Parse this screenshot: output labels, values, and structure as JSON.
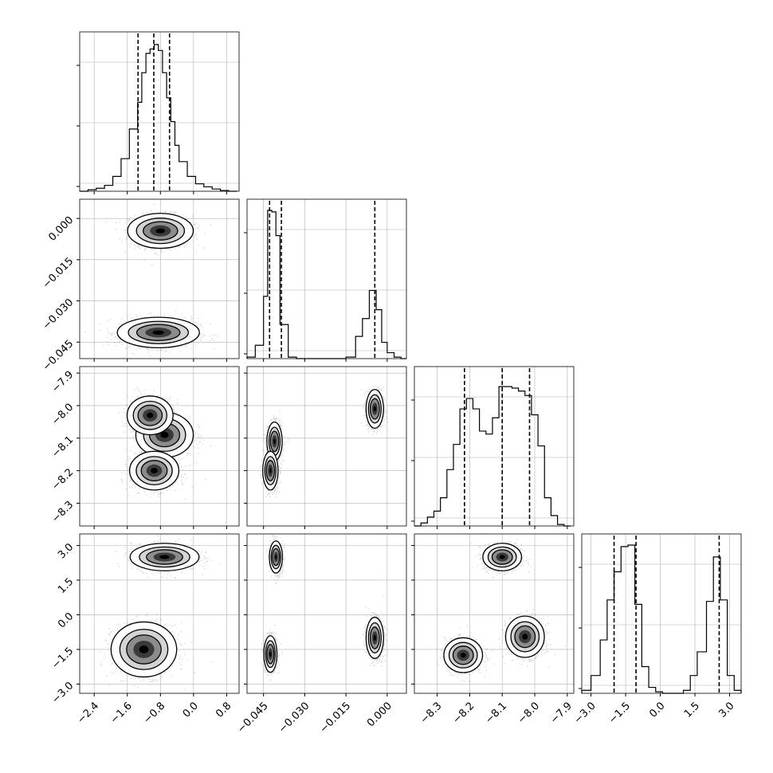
{
  "chart_data": {
    "type": "corner",
    "quantiles": [
      0.16,
      0.5,
      0.84
    ],
    "parameters": [
      {
        "range": [
          -2.75,
          1.1
        ],
        "ticks": [
          -2.4,
          -1.6,
          -0.8,
          0.0,
          0.8
        ],
        "tick_labels": [
          "−2.4",
          "−1.6",
          "−0.8",
          "0.0",
          "0.8"
        ],
        "quantile_values": [
          -1.34,
          -0.96,
          -0.58
        ],
        "histogram": {
          "bin_edges": [
            -2.75,
            -2.55,
            -2.35,
            -2.15,
            -1.95,
            -1.75,
            -1.55,
            -1.35,
            -1.25,
            -1.15,
            -1.05,
            -0.95,
            -0.85,
            -0.75,
            -0.65,
            -0.55,
            -0.45,
            -0.35,
            -0.15,
            0.05,
            0.25,
            0.45,
            0.65,
            0.85,
            1.05
          ],
          "counts": [
            0.0,
            0.01,
            0.02,
            0.04,
            0.1,
            0.22,
            0.42,
            0.6,
            0.8,
            0.93,
            0.96,
            0.99,
            0.95,
            0.8,
            0.63,
            0.47,
            0.31,
            0.2,
            0.1,
            0.05,
            0.03,
            0.015,
            0.005,
            0.0
          ]
        }
      },
      {
        "range": [
          -0.051,
          0.007
        ],
        "ticks": [
          -0.045,
          -0.03,
          -0.015,
          0.0
        ],
        "tick_labels": [
          "−0.045",
          "−0.030",
          "−0.015",
          "0.000"
        ],
        "quantile_values": [
          -0.0428,
          -0.0385,
          -0.0045
        ],
        "histogram": {
          "bin_edges": [
            -0.051,
            -0.048,
            -0.045,
            -0.0435,
            -0.042,
            -0.0405,
            -0.039,
            -0.036,
            -0.033,
            -0.03,
            -0.027,
            -0.024,
            -0.021,
            -0.018,
            -0.015,
            -0.0115,
            -0.009,
            -0.0065,
            -0.004,
            -0.002,
            0.0,
            0.0025,
            0.005,
            0.007
          ],
          "counts": [
            0.01,
            0.09,
            0.42,
            1.0,
            0.99,
            0.83,
            0.23,
            0.01,
            0.0,
            0.0,
            0.0,
            0.0,
            0.0,
            0.0,
            0.01,
            0.15,
            0.27,
            0.46,
            0.33,
            0.11,
            0.04,
            0.01,
            0.0
          ]
        }
      },
      {
        "range": [
          -8.37,
          -7.88
        ],
        "ticks": [
          -8.3,
          -8.2,
          -8.1,
          -8.0,
          -7.9
        ],
        "tick_labels": [
          "−8.3",
          "−8.2",
          "−8.1",
          "−8.0",
          "−7.9"
        ],
        "quantile_values": [
          -8.216,
          -8.1,
          -8.016
        ],
        "histogram": {
          "bin_edges": [
            -8.37,
            -8.35,
            -8.33,
            -8.31,
            -8.29,
            -8.27,
            -8.25,
            -8.23,
            -8.21,
            -8.19,
            -8.17,
            -8.15,
            -8.13,
            -8.11,
            -8.09,
            -8.07,
            -8.05,
            -8.03,
            -8.01,
            -7.99,
            -7.97,
            -7.95,
            -7.93,
            -7.91,
            -7.89
          ],
          "counts": [
            0.0,
            0.02,
            0.06,
            0.1,
            0.19,
            0.38,
            0.55,
            0.79,
            0.86,
            0.79,
            0.64,
            0.62,
            0.73,
            0.94,
            0.94,
            0.93,
            0.91,
            0.88,
            0.75,
            0.54,
            0.19,
            0.07,
            0.01,
            0.0
          ]
        }
      },
      {
        "range": [
          -3.4,
          3.5
        ],
        "ticks": [
          -3.0,
          -1.5,
          0.0,
          1.5,
          3.0
        ],
        "tick_labels": [
          "−3.0",
          "−1.5",
          "0.0",
          "1.5",
          "3.0"
        ],
        "quantile_values": [
          -2.0,
          -1.05,
          2.55
        ],
        "histogram": {
          "bin_edges": [
            -3.4,
            -3.0,
            -2.6,
            -2.3,
            -2.0,
            -1.7,
            -1.4,
            -1.1,
            -0.8,
            -0.5,
            -0.2,
            0.1,
            0.4,
            0.7,
            1.0,
            1.3,
            1.6,
            2.0,
            2.3,
            2.6,
            2.9,
            3.2,
            3.5
          ],
          "counts": [
            0.02,
            0.12,
            0.36,
            0.63,
            0.82,
            0.99,
            1.0,
            0.6,
            0.18,
            0.04,
            0.01,
            0.0,
            0.0,
            0.0,
            0.02,
            0.12,
            0.28,
            0.62,
            0.92,
            0.63,
            0.12,
            0.02
          ]
        }
      }
    ],
    "pairs": [
      {
        "row": 1,
        "col": 0,
        "modes": [
          {
            "cx": -0.8,
            "cy": -0.0045,
            "sx": 0.4,
            "sy": 0.0032
          },
          {
            "cx": -0.85,
            "cy": -0.0415,
            "sx": 0.5,
            "sy": 0.0028
          }
        ]
      },
      {
        "row": 2,
        "col": 0,
        "modes": [
          {
            "cx": -0.7,
            "cy": -8.09,
            "sx": 0.35,
            "sy": 0.035
          },
          {
            "cx": -0.95,
            "cy": -8.2,
            "sx": 0.3,
            "sy": 0.03
          },
          {
            "cx": -1.05,
            "cy": -8.03,
            "sx": 0.28,
            "sy": 0.03
          }
        ]
      },
      {
        "row": 2,
        "col": 1,
        "modes": [
          {
            "cx": -0.041,
            "cy": -8.11,
            "sx": 0.0014,
            "sy": 0.03
          },
          {
            "cx": -0.0425,
            "cy": -8.2,
            "sx": 0.0014,
            "sy": 0.03
          },
          {
            "cx": -0.0045,
            "cy": -8.01,
            "sx": 0.0016,
            "sy": 0.03
          }
        ]
      },
      {
        "row": 3,
        "col": 0,
        "modes": [
          {
            "cx": -0.7,
            "cy": 2.5,
            "sx": 0.42,
            "sy": 0.3
          },
          {
            "cx": -1.2,
            "cy": -1.5,
            "sx": 0.4,
            "sy": 0.6
          }
        ]
      },
      {
        "row": 3,
        "col": 1,
        "modes": [
          {
            "cx": -0.0405,
            "cy": 2.5,
            "sx": 0.0012,
            "sy": 0.35
          },
          {
            "cx": -0.0425,
            "cy": -1.7,
            "sx": 0.0012,
            "sy": 0.4
          },
          {
            "cx": -0.0045,
            "cy": -1.0,
            "sx": 0.0016,
            "sy": 0.45
          }
        ]
      },
      {
        "row": 3,
        "col": 2,
        "modes": [
          {
            "cx": -8.1,
            "cy": 2.5,
            "sx": 0.03,
            "sy": 0.3
          },
          {
            "cx": -8.22,
            "cy": -1.75,
            "sx": 0.03,
            "sy": 0.38
          },
          {
            "cx": -8.03,
            "cy": -0.95,
            "sx": 0.03,
            "sy": 0.45
          }
        ]
      }
    ],
    "colors": {
      "line": "#000000",
      "grid": "#b0b0b0",
      "scatter": "#808080"
    },
    "grid": true,
    "xlabel": "",
    "ylabel": "",
    "title": ""
  }
}
